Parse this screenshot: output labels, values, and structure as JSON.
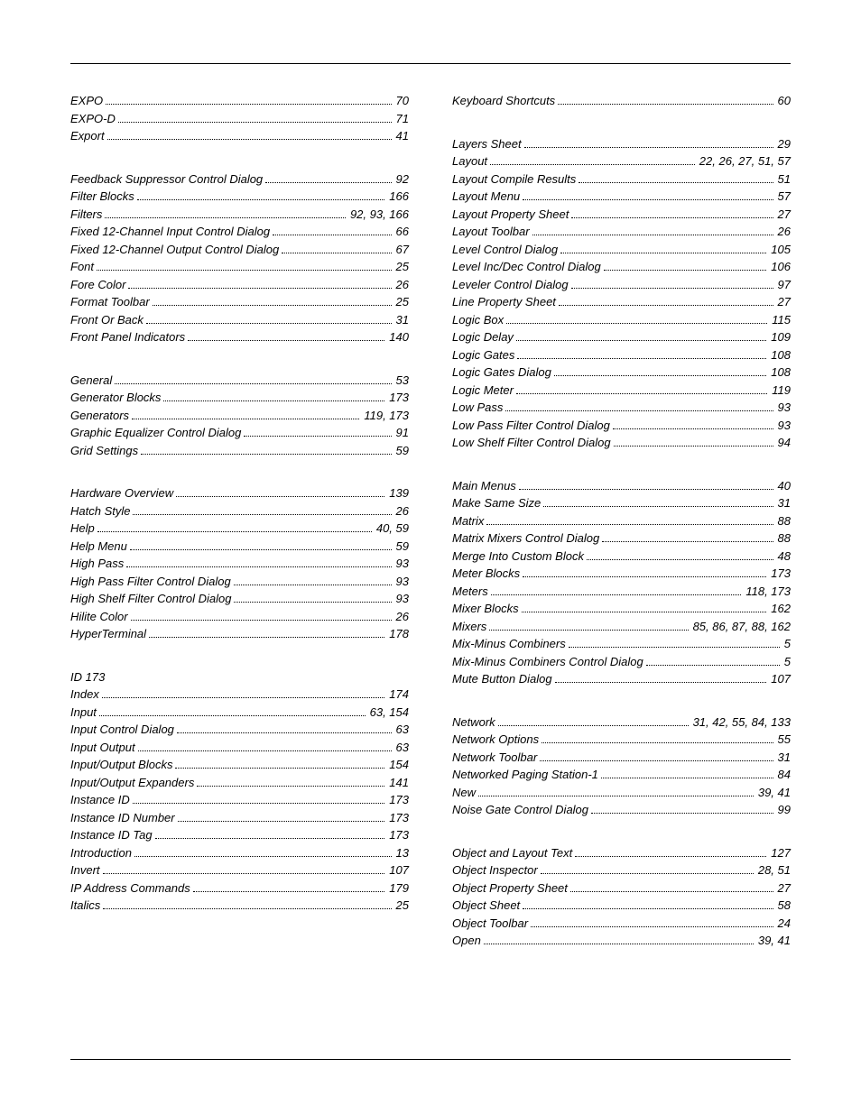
{
  "left": [
    [
      {
        "label": "EXPO",
        "page": "70"
      },
      {
        "label": "EXPO-D",
        "page": "71"
      },
      {
        "label": "Export",
        "page": "41"
      }
    ],
    [
      {
        "label": "Feedback Suppressor Control Dialog",
        "page": "92"
      },
      {
        "label": "Filter Blocks",
        "page": "166"
      },
      {
        "label": "Filters",
        "page": "92, 93, 166"
      },
      {
        "label": "Fixed 12-Channel Input Control Dialog",
        "page": "66"
      },
      {
        "label": "Fixed 12-Channel Output Control Dialog",
        "page": "67"
      },
      {
        "label": "Font",
        "page": "25"
      },
      {
        "label": "Fore Color",
        "page": "26"
      },
      {
        "label": "Format Toolbar",
        "page": "25"
      },
      {
        "label": "Front Or Back",
        "page": "31"
      },
      {
        "label": "Front Panel Indicators",
        "page": "140"
      }
    ],
    [
      {
        "label": "General",
        "page": "53"
      },
      {
        "label": "Generator Blocks",
        "page": "173"
      },
      {
        "label": "Generators",
        "page": "119, 173"
      },
      {
        "label": "Graphic Equalizer Control Dialog",
        "page": "91"
      },
      {
        "label": "Grid Settings",
        "page": "59"
      }
    ],
    [
      {
        "label": "Hardware Overview",
        "page": "139"
      },
      {
        "label": "Hatch Style",
        "page": "26"
      },
      {
        "label": "Help",
        "page": "40, 59"
      },
      {
        "label": "Help Menu",
        "page": "59"
      },
      {
        "label": "High Pass",
        "page": "93"
      },
      {
        "label": "High Pass Filter Control Dialog",
        "page": "93"
      },
      {
        "label": "High Shelf Filter Control Dialog",
        "page": "93"
      },
      {
        "label": "Hilite Color",
        "page": "26"
      },
      {
        "label": "HyperTerminal",
        "page": "178"
      }
    ],
    [
      {
        "label": "ID 173",
        "page": "",
        "noDots": true
      },
      {
        "label": "Index",
        "page": "174"
      },
      {
        "label": "Input",
        "page": "63, 154"
      },
      {
        "label": "Input Control Dialog",
        "page": "63"
      },
      {
        "label": "Input Output",
        "page": "63"
      },
      {
        "label": "Input/Output Blocks",
        "page": "154"
      },
      {
        "label": "Input/Output Expanders",
        "page": "141"
      },
      {
        "label": "Instance ID",
        "page": "173"
      },
      {
        "label": "Instance ID Number",
        "page": "173"
      },
      {
        "label": "Instance ID Tag",
        "page": "173"
      },
      {
        "label": "Introduction",
        "page": "13"
      },
      {
        "label": "Invert",
        "page": "107"
      },
      {
        "label": "IP Address Commands",
        "page": "179"
      },
      {
        "label": "Italics",
        "page": "25"
      }
    ]
  ],
  "right": [
    [
      {
        "label": "Keyboard Shortcuts",
        "page": "60"
      }
    ],
    [
      {
        "label": "Layers Sheet",
        "page": "29"
      },
      {
        "label": "Layout",
        "page": "22, 26, 27, 51, 57"
      },
      {
        "label": "Layout Compile Results",
        "page": "51"
      },
      {
        "label": "Layout Menu",
        "page": "57"
      },
      {
        "label": "Layout Property Sheet",
        "page": "27"
      },
      {
        "label": "Layout Toolbar",
        "page": "26"
      },
      {
        "label": "Level Control Dialog",
        "page": "105"
      },
      {
        "label": "Level Inc/Dec Control Dialog",
        "page": "106"
      },
      {
        "label": "Leveler Control Dialog",
        "page": "97"
      },
      {
        "label": "Line Property Sheet",
        "page": "27"
      },
      {
        "label": "Logic Box",
        "page": "115"
      },
      {
        "label": "Logic Delay",
        "page": "109"
      },
      {
        "label": "Logic Gates",
        "page": "108"
      },
      {
        "label": "Logic Gates Dialog",
        "page": "108"
      },
      {
        "label": "Logic Meter",
        "page": "119"
      },
      {
        "label": "Low Pass",
        "page": "93"
      },
      {
        "label": "Low Pass Filter Control Dialog",
        "page": "93"
      },
      {
        "label": "Low Shelf Filter Control Dialog",
        "page": "94"
      }
    ],
    [
      {
        "label": "Main Menus",
        "page": "40"
      },
      {
        "label": "Make Same Size",
        "page": "31"
      },
      {
        "label": "Matrix",
        "page": "88"
      },
      {
        "label": "Matrix Mixers Control Dialog",
        "page": "88"
      },
      {
        "label": "Merge Into Custom Block",
        "page": "48"
      },
      {
        "label": "Meter Blocks",
        "page": "173"
      },
      {
        "label": "Meters",
        "page": "118, 173"
      },
      {
        "label": "Mixer Blocks",
        "page": "162"
      },
      {
        "label": "Mixers",
        "page": "85, 86, 87, 88, 162"
      },
      {
        "label": "Mix-Minus Combiners",
        "page": "5"
      },
      {
        "label": "Mix-Minus Combiners Control Dialog",
        "page": "5"
      },
      {
        "label": "Mute Button Dialog",
        "page": "107"
      }
    ],
    [
      {
        "label": "Network",
        "page": "31, 42, 55, 84, 133"
      },
      {
        "label": "Network Options",
        "page": "55"
      },
      {
        "label": "Network Toolbar",
        "page": "31"
      },
      {
        "label": "Networked Paging Station-1",
        "page": "84"
      },
      {
        "label": "New",
        "page": "39, 41"
      },
      {
        "label": "Noise Gate Control Dialog",
        "page": "99"
      }
    ],
    [
      {
        "label": "Object and Layout Text",
        "page": "127"
      },
      {
        "label": "Object Inspector",
        "page": "28, 51"
      },
      {
        "label": "Object Property Sheet",
        "page": "27"
      },
      {
        "label": "Object Sheet",
        "page": "58"
      },
      {
        "label": "Object Toolbar",
        "page": "24"
      },
      {
        "label": "Open",
        "page": "39, 41"
      }
    ]
  ]
}
